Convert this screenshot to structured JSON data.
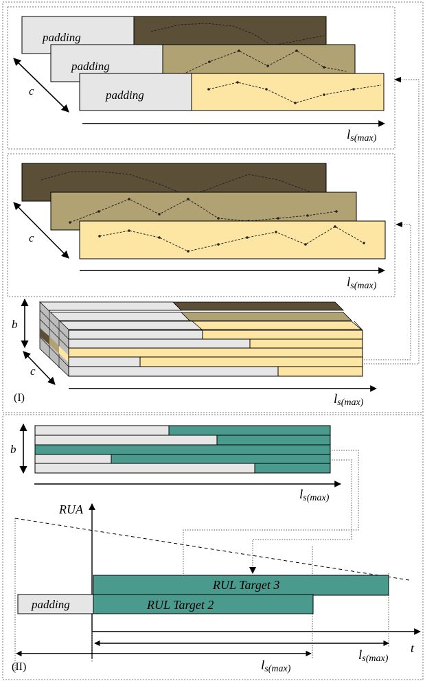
{
  "colors": {
    "dark": "#5c4f37",
    "mid": "#b1a274",
    "light": "#fde5a4",
    "padding": "#e6e6e6",
    "teal": "#4a9b8d",
    "side": "#bdbdbd"
  },
  "labels": {
    "padding": "padding",
    "c": "c",
    "b": "b",
    "ls_base": "l",
    "ls_sub": "s(max)",
    "part_one": "(I)",
    "part_two": "(II)",
    "rua": "RUA",
    "t": "t",
    "rul_target_2": "RUL Target 2",
    "rul_target_3": "RUL Target 3"
  }
}
